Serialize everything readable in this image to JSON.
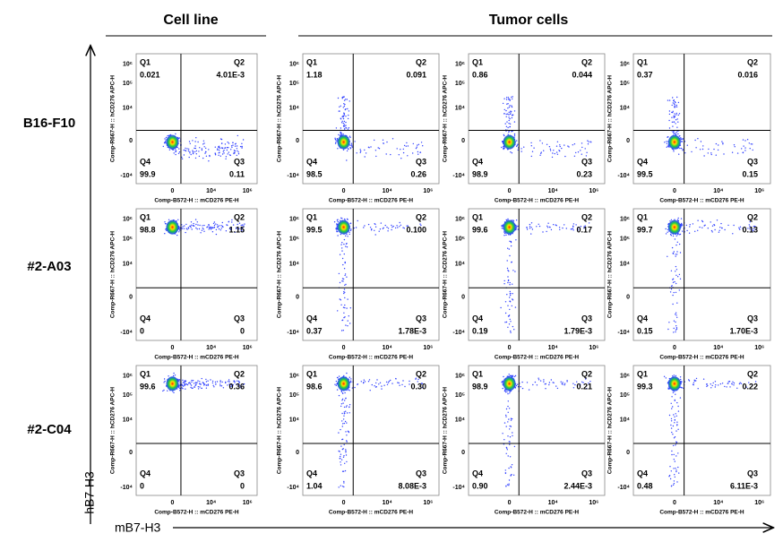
{
  "header": {
    "cell_line": "Cell line",
    "tumor_cells": "Tumor cells"
  },
  "y_axis_label": "hB7-H3",
  "x_axis_label": "mB7-H3",
  "plot_axes": {
    "y_label": "Comp-R667-H :: hCD276 APC-H",
    "x_label": "Comp-B572-H :: mCD276 PE-H",
    "y_ticks": [
      "10⁶",
      "10⁵",
      "10⁴",
      "0",
      "-10⁴"
    ],
    "x_ticks": [
      "0",
      "10⁴",
      "10⁶"
    ]
  },
  "quadrants": [
    "Q1",
    "Q2",
    "Q3",
    "Q4"
  ],
  "rows": [
    {
      "label": "B16-F10",
      "panels": [
        [
          "0.021",
          "4.01E-3",
          "0.11",
          "99.9"
        ],
        [
          "1.18",
          "0.091",
          "0.26",
          "98.5"
        ],
        [
          "0.86",
          "0.044",
          "0.23",
          "98.9"
        ],
        [
          "0.37",
          "0.016",
          "0.15",
          "99.5"
        ]
      ]
    },
    {
      "label": "#2-A03",
      "panels": [
        [
          "98.8",
          "1.15",
          "0",
          "0"
        ],
        [
          "99.5",
          "0.100",
          "1.78E-3",
          "0.37"
        ],
        [
          "99.6",
          "0.17",
          "1.79E-3",
          "0.19"
        ],
        [
          "99.7",
          "0.13",
          "1.70E-3",
          "0.15"
        ]
      ]
    },
    {
      "label": "#2-C04",
      "panels": [
        [
          "99.6",
          "0.36",
          "0",
          "0"
        ],
        [
          "98.6",
          "0.30",
          "8.08E-3",
          "1.04"
        ],
        [
          "98.9",
          "0.21",
          "2.44E-3",
          "0.90"
        ],
        [
          "99.3",
          "0.22",
          "6.11E-3",
          "0.48"
        ]
      ]
    }
  ]
}
